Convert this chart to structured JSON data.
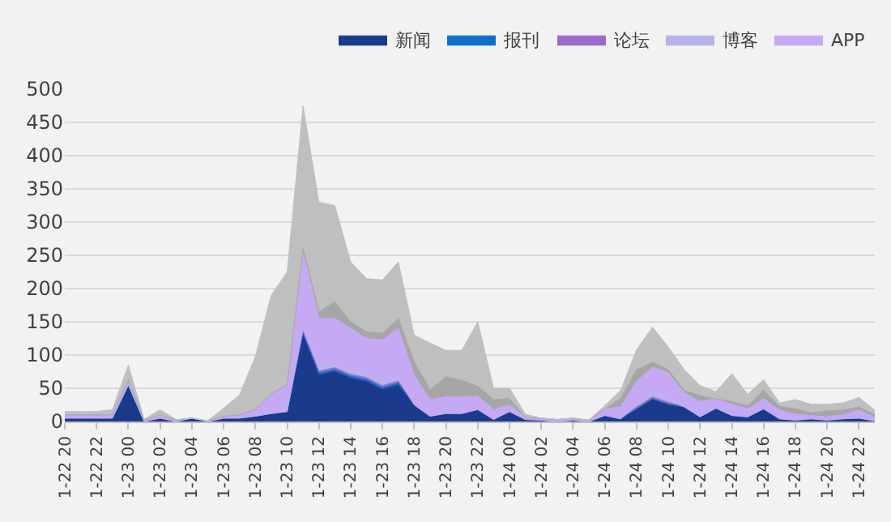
{
  "chart_data": {
    "type": "area",
    "stacked": true,
    "categories": [
      "1-22 20",
      null,
      "1-22 22",
      null,
      "1-23 00",
      null,
      "1-23 02",
      null,
      "1-23 04",
      null,
      "1-23 06",
      null,
      "1-23 08",
      null,
      "1-23 10",
      null,
      "1-23 12",
      null,
      "1-23 14",
      null,
      "1-23 16",
      null,
      "1-23 18",
      null,
      "1-23 20",
      null,
      "1-23 22",
      null,
      "1-24 00",
      null,
      "1-24 02",
      null,
      "1-24 04",
      null,
      "1-24 06",
      null,
      "1-24 08",
      null,
      "1-24 10",
      null,
      "1-24 12",
      null,
      "1-24 14",
      null,
      "1-24 16",
      null,
      "1-24 18",
      null,
      "1-24 20",
      null,
      "1-24 22",
      null
    ],
    "series": [
      {
        "name": "新闻",
        "color": "#1a3a8c",
        "values": [
          5,
          5,
          5,
          5,
          55,
          0,
          5,
          0,
          5,
          0,
          5,
          5,
          8,
          12,
          15,
          130,
          70,
          75,
          65,
          60,
          48,
          55,
          25,
          8,
          12,
          12,
          18,
          3,
          15,
          3,
          2,
          0,
          2,
          0,
          9,
          4,
          19,
          34,
          26,
          22,
          7,
          20,
          9,
          7,
          19,
          4,
          2,
          4,
          2,
          4,
          5,
          1
        ]
      },
      {
        "name": "报刊",
        "color": "#0f6fc6",
        "values": [
          0,
          0,
          0,
          0,
          0,
          0,
          0,
          0,
          0,
          0,
          0,
          0,
          0,
          0,
          0,
          3,
          3,
          3,
          3,
          3,
          3,
          3,
          0,
          0,
          0,
          0,
          0,
          0,
          0,
          0,
          0,
          0,
          0,
          0,
          0,
          0,
          0,
          0,
          0,
          0,
          0,
          0,
          0,
          0,
          0,
          0,
          0,
          0,
          0,
          0,
          0,
          0
        ]
      },
      {
        "name": "论坛",
        "color": "#9b6bcb",
        "values": [
          0,
          0,
          0,
          0,
          0,
          0,
          0,
          0,
          0,
          0,
          0,
          0,
          0,
          0,
          0,
          3,
          3,
          3,
          3,
          3,
          3,
          3,
          0,
          0,
          0,
          0,
          0,
          0,
          0,
          0,
          0,
          0,
          0,
          0,
          0,
          0,
          3,
          3,
          3,
          0,
          0,
          0,
          0,
          0,
          0,
          0,
          0,
          0,
          0,
          0,
          0,
          0
        ]
      },
      {
        "name": "博客",
        "color": "#b4b4e8",
        "values": [
          0,
          0,
          0,
          0,
          0,
          0,
          0,
          0,
          0,
          0,
          0,
          0,
          0,
          0,
          0,
          5,
          5,
          5,
          5,
          5,
          5,
          5,
          0,
          0,
          0,
          0,
          0,
          0,
          0,
          0,
          0,
          0,
          0,
          0,
          0,
          0,
          5,
          5,
          5,
          0,
          0,
          0,
          0,
          0,
          0,
          0,
          0,
          0,
          0,
          0,
          0,
          0
        ]
      },
      {
        "name": "APP",
        "color": "#c5a9f5",
        "values": [
          5,
          5,
          5,
          5,
          5,
          2,
          5,
          2,
          0,
          1,
          3,
          5,
          10,
          30,
          40,
          114,
          74,
          69,
          64,
          54,
          64,
          74,
          45,
          25,
          25,
          25,
          20,
          15,
          10,
          3,
          3,
          3,
          3,
          2,
          10,
          18,
          33,
          40,
          39,
          21,
          23,
          14,
          17,
          12,
          15,
          13,
          9,
          5,
          5,
          6,
          12,
          5
        ]
      },
      {
        "color": "#a6a6a6",
        "values": [
          0,
          0,
          0,
          0,
          3,
          0,
          0,
          0,
          0,
          0,
          0,
          0,
          0,
          0,
          0,
          5,
          10,
          25,
          10,
          10,
          10,
          15,
          20,
          15,
          30,
          25,
          15,
          15,
          10,
          0,
          0,
          0,
          0,
          0,
          0,
          13,
          18,
          7,
          5,
          4,
          9,
          0,
          4,
          5,
          13,
          6,
          8,
          4,
          9,
          7,
          5,
          4
        ]
      },
      {
        "color": "#bfbfbf",
        "values": [
          5,
          5,
          5,
          8,
          22,
          1,
          8,
          1,
          0,
          0,
          12,
          30,
          80,
          148,
          170,
          215,
          165,
          145,
          90,
          80,
          80,
          85,
          40,
          70,
          40,
          45,
          97,
          17,
          15,
          5,
          0,
          0,
          0,
          0,
          5,
          12,
          30,
          53,
          34,
          31,
          15,
          11,
          42,
          17,
          16,
          5,
          14,
          13,
          10,
          11,
          14,
          7
        ]
      }
    ],
    "ylim": [
      0,
      500
    ],
    "yticks": [
      0,
      50,
      100,
      150,
      200,
      250,
      300,
      350,
      400,
      450,
      500
    ],
    "grid": "y",
    "legend": "top right"
  }
}
